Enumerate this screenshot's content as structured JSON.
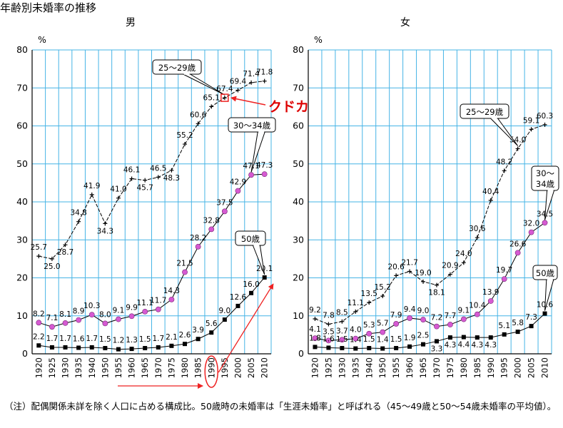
{
  "page_title": "年齢別未婚率の推移",
  "note": "（注）配偶関係未詳を除く人口に占める構成比。50歳時の未婚率は「生涯未婚率」と呼ばれる（45～49歳と50～54歳未婚率の平均値）。",
  "colors": {
    "grid": "#46b4e6",
    "line": "#000000",
    "marker_30_34": "#d65ad2",
    "annotation": "#ee2222",
    "annotation_text": "#dd0000"
  },
  "annotation": {
    "text": "クドカン結婚",
    "year": 1990
  },
  "chart_data": [
    {
      "type": "line",
      "title": "男",
      "ylabel": "%",
      "ylim": [
        0,
        80
      ],
      "yticks": [
        0,
        10,
        20,
        30,
        40,
        50,
        60,
        70,
        80
      ],
      "categories": [
        "1920",
        "1925",
        "1930",
        "1935",
        "1940",
        "1950",
        "1955",
        "1960",
        "1965",
        "1970",
        "1975",
        "1980",
        "1985",
        "1990",
        "1995",
        "2000",
        "2005",
        "2010"
      ],
      "series": [
        {
          "name": "25～29歳",
          "callout": "25～29歳",
          "marker": "plus",
          "values": [
            25.7,
            25.0,
            28.7,
            34.8,
            41.9,
            34.3,
            41.0,
            46.1,
            45.7,
            46.5,
            48.3,
            55.2,
            60.6,
            65.1,
            67.4,
            69.4,
            71.4,
            71.8
          ],
          "labels": [
            "25.7",
            "25.0",
            "28.7",
            "34.8",
            "41.9",
            "34.3",
            "41.0",
            "46.1",
            "45.7",
            "46.5",
            "48.3",
            "55.2",
            "60.6",
            "65.1",
            "67.4",
            "69.4",
            "71.4",
            "71.8"
          ]
        },
        {
          "name": "30～34歳",
          "callout": "30～34歳",
          "marker": "circle",
          "values": [
            8.2,
            7.1,
            8.1,
            8.9,
            10.3,
            8.0,
            9.1,
            9.9,
            11.1,
            11.7,
            14.3,
            21.5,
            28.2,
            32.8,
            37.5,
            42.9,
            47.1,
            47.3
          ],
          "labels": [
            "8.2",
            "7.1",
            "8.1",
            "8.9",
            "10.3",
            "8.0",
            "9.1",
            "9.9",
            "11.1",
            "11.7",
            "14.3",
            "21.5",
            "28.2",
            "32.8",
            "37.5",
            "42.9",
            "47.1",
            "47.3"
          ]
        },
        {
          "name": "50歳",
          "callout": "50歳",
          "marker": "square",
          "values": [
            2.2,
            1.7,
            1.7,
            1.6,
            1.7,
            1.5,
            1.2,
            1.3,
            1.5,
            1.7,
            2.1,
            2.6,
            3.9,
            5.6,
            9.0,
            12.6,
            16.0,
            20.1
          ],
          "labels": [
            "2.2",
            "1.7",
            "1.7",
            "1.6",
            "1.7",
            "1.5",
            "1.2",
            "1.3",
            "1.5",
            "1.7",
            "2.1",
            "2.6",
            "3.9",
            "5.6",
            "9.0",
            "12.6",
            "16.0",
            "20.1"
          ]
        }
      ]
    },
    {
      "type": "line",
      "title": "女",
      "ylabel": "%",
      "ylim": [
        0,
        80
      ],
      "yticks": [
        0,
        10,
        20,
        30,
        40,
        50,
        60,
        70,
        80
      ],
      "categories": [
        "1920",
        "1925",
        "1930",
        "1935",
        "1940",
        "1950",
        "1955",
        "1960",
        "1965",
        "1970",
        "1975",
        "1980",
        "1985",
        "1990",
        "1995",
        "2000",
        "2005",
        "2010"
      ],
      "series": [
        {
          "name": "25～29歳",
          "callout": "25～29歳",
          "marker": "plus",
          "values": [
            9.2,
            7.8,
            8.5,
            11.1,
            13.5,
            15.2,
            20.6,
            21.7,
            19.0,
            18.1,
            20.9,
            24.0,
            30.6,
            40.4,
            48.2,
            54.0,
            59.1,
            60.3
          ],
          "labels": [
            "9.2",
            "7.8",
            "8.5",
            "11.1",
            "13.5",
            "15.2",
            "20.6",
            "21.7",
            "19.0",
            "18.1",
            "20.9",
            "24.0",
            "30.6",
            "40.4",
            "48.2",
            "54.0",
            "59.1",
            "60.3"
          ]
        },
        {
          "name": "30～34歳",
          "callout": "30～34歳",
          "marker": "circle",
          "values": [
            4.1,
            3.5,
            3.7,
            4.0,
            5.3,
            5.7,
            7.9,
            9.4,
            9.0,
            7.2,
            7.7,
            9.1,
            10.4,
            13.9,
            19.7,
            26.6,
            32.0,
            34.5
          ],
          "labels": [
            "4.1",
            "3.5",
            "3.7",
            "4.0",
            "5.3",
            "5.7",
            "7.9",
            "9.4",
            "9.0",
            "7.2",
            "7.7",
            "9.1",
            "10.4",
            "13.9",
            "19.7",
            "26.6",
            "32.0",
            "34.5"
          ]
        },
        {
          "name": "50歳",
          "callout": "50歳",
          "marker": "square",
          "values": [
            1.8,
            1.6,
            1.5,
            1.4,
            1.5,
            1.4,
            1.5,
            1.9,
            2.5,
            3.3,
            4.3,
            4.4,
            4.3,
            4.3,
            5.1,
            5.8,
            7.3,
            10.6
          ],
          "labels": [
            "1.8",
            "1.6",
            "1.5",
            "1.4",
            "1.5",
            "1.4",
            "1.5",
            "1.9",
            "2.5",
            "3.3",
            "4.3",
            "4.4",
            "4.3",
            "4.3",
            "5.1",
            "5.8",
            "7.3",
            "10.6"
          ]
        }
      ]
    }
  ]
}
